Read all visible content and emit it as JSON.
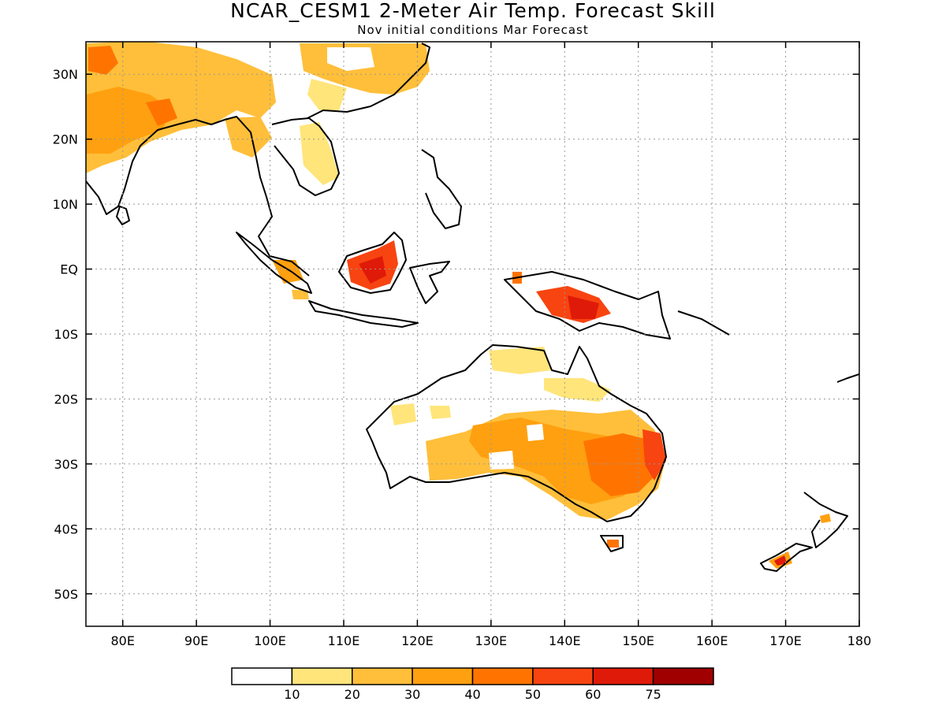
{
  "title": "NCAR_CESM1 2-Meter Air Temp. Forecast Skill",
  "subtitle": "Nov initial conditions  Mar Forecast",
  "map": {
    "lon_range": [
      75,
      180
    ],
    "lat_range": [
      -55,
      35
    ],
    "lat_ticks": [
      {
        "value": 30,
        "label": "30N"
      },
      {
        "value": 20,
        "label": "20N"
      },
      {
        "value": 10,
        "label": "10N"
      },
      {
        "value": 0,
        "label": "EQ"
      },
      {
        "value": -10,
        "label": "10S"
      },
      {
        "value": -20,
        "label": "20S"
      },
      {
        "value": -30,
        "label": "30S"
      },
      {
        "value": -40,
        "label": "40S"
      },
      {
        "value": -50,
        "label": "50S"
      }
    ],
    "lon_ticks": [
      {
        "value": 80,
        "label": "80E"
      },
      {
        "value": 90,
        "label": "90E"
      },
      {
        "value": 100,
        "label": "100E"
      },
      {
        "value": 110,
        "label": "110E"
      },
      {
        "value": 120,
        "label": "120E"
      },
      {
        "value": 130,
        "label": "130E"
      },
      {
        "value": 140,
        "label": "140E"
      },
      {
        "value": 150,
        "label": "150E"
      },
      {
        "value": 160,
        "label": "160E"
      },
      {
        "value": 170,
        "label": "170E"
      },
      {
        "value": 180,
        "label": "180"
      }
    ],
    "grid": "dotted"
  },
  "colorbar": {
    "colors": [
      "#ffffff",
      "#ffe57a",
      "#ffbf3a",
      "#ffa010",
      "#ff7400",
      "#f84410",
      "#e01a08",
      "#a00000"
    ],
    "labels": [
      "10",
      "20",
      "30",
      "40",
      "50",
      "60",
      "75"
    ]
  }
}
